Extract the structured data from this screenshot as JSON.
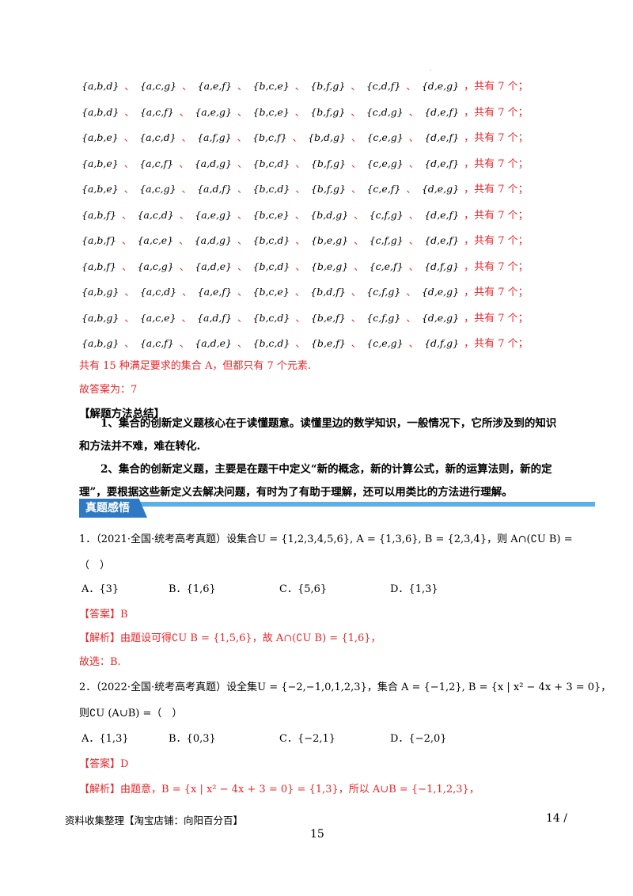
{
  "rows": [
    {
      "sets": [
        "{a,b,d}",
        "{a,c,g}",
        "{a,e,f}",
        "{b,c,e}",
        "{b,f,g}",
        "{c,d,f}",
        "{d,e,g}"
      ]
    },
    {
      "sets": [
        "{a,b,d}",
        "{a,c,f}",
        "{a,e,g}",
        "{b,c,e}",
        "{b,f,g}",
        "{c,d,g}",
        "{d,e,f}"
      ]
    },
    {
      "sets": [
        "{a,b,e}",
        "{a,c,d}",
        "{a,f,g}",
        "{b,c,f}",
        "{b,d,g}",
        "{c,e,g}",
        "{d,e,f}"
      ]
    },
    {
      "sets": [
        "{a,b,e}",
        "{a,c,f}",
        "{a,d,g}",
        "{b,c,d}",
        "{b,f,g}",
        "{c,e,g}",
        "{d,e,f}"
      ]
    },
    {
      "sets": [
        "{a,b,e}",
        "{a,c,g}",
        "{a,d,f}",
        "{b,c,d}",
        "{b,f,g}",
        "{c,e,f}",
        "{d,e,g}"
      ]
    },
    {
      "sets": [
        "{a,b,f}",
        "{a,c,d}",
        "{a,e,g}",
        "{b,c,e}",
        "{b,d,g}",
        "{c,f,g}",
        "{d,e,f}"
      ]
    },
    {
      "sets": [
        "{a,b,f}",
        "{a,c,e}",
        "{a,d,g}",
        "{b,c,d}",
        "{b,e,g}",
        "{c,f,g}",
        "{d,e,f}"
      ]
    },
    {
      "sets": [
        "{a,b,f}",
        "{a,c,g}",
        "{a,d,e}",
        "{b,c,d}",
        "{b,e,g}",
        "{c,e,f}",
        "{d,f,g}"
      ]
    },
    {
      "sets": [
        "{a,b,g}",
        "{a,c,d}",
        "{a,e,f}",
        "{b,c,e}",
        "{b,d,f}",
        "{c,f,g}",
        "{d,e,g}"
      ]
    },
    {
      "sets": [
        "{a,b,g}",
        "{a,c,e}",
        "{a,d,f}",
        "{b,c,d}",
        "{b,e,f}",
        "{c,f,g}",
        "{d,e,g}"
      ]
    },
    {
      "sets": [
        "{a,b,g}",
        "{a,c,f}",
        "{a,d,e}",
        "{b,c,d}",
        "{b,e,f}",
        "{c,e,g}",
        "{d,f,g}"
      ]
    }
  ],
  "separator": "、",
  "row_tail": "，共有 7 个；",
  "summary_line": "共有 15 种满足要求的集合 A，但都只有 7 个元素.",
  "answer_line": "故答案为：7",
  "method_title": "【解题方法总结】",
  "method_1": "1、集合的创新定义题核心在于读懂题意。读懂里边的数学知识，一般情况下，它所涉及到的知识和方法并不难，难在转化.",
  "method_2": "2、集合的创新定义题，主要是在题干中定义“新的概念，新的计算公式，新的运算法则，新的定理”，要根据这些新定义去解决问题，有时为了有助于理解，还可以用类比的方法进行理解。",
  "section_heading": "真题感悟",
  "q1": {
    "stem": "1．（2021·全国·统考高考真题）设集合U = {1,2,3,4,5,6}, A = {1,3,6}, B = {2,3,4}，则 A∩(∁U B) =",
    "paren": "（　）",
    "options": [
      "A．{3}",
      "B．{1,6}",
      "C．{5,6}",
      "D．{1,3}"
    ],
    "answer_tag": "【答案】",
    "answer": "B",
    "analysis_tag": "【解析】",
    "analysis": "由题设可得∁U B = {1,5,6}，故 A∩(∁U B) = {1,6}，",
    "conclusion": "故选：B."
  },
  "q2": {
    "stem": "2．（2022·全国·统考高考真题）设全集U = {−2,−1,0,1,2,3}，集合 A = {−1,2}, B = {x | x² − 4x + 3 = 0}，",
    "stem2": "则∁U (A∪B) =（　）",
    "options": [
      "A．{1,3}",
      "B．{0,3}",
      "C．{−2,1}",
      "D．{−2,0}"
    ],
    "answer_tag": "【答案】",
    "answer": "D",
    "analysis_tag": "【解析】",
    "analysis": "由题意，B = {x | x² − 4x + 3 = 0} = {1,3}，所以 A∪B = {−1,1,2,3}，"
  },
  "footer": {
    "left": "资料收集整理【淘宝店铺：向阳百分百】",
    "right": "14 /",
    "page_number": "15"
  },
  "colors": {
    "red": "#e8262a",
    "heading_bg": "#2f79c4",
    "heading_stripe": "#5bb1e6"
  }
}
